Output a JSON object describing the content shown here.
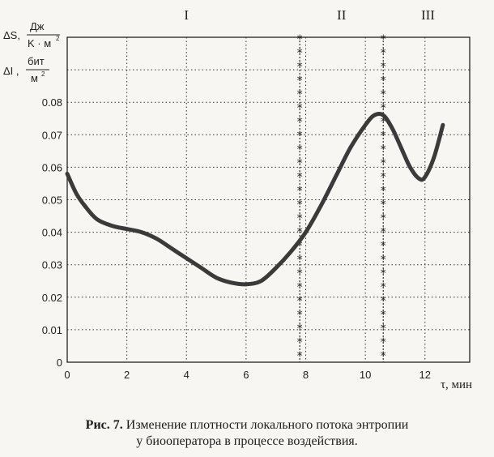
{
  "chart_data": {
    "type": "line",
    "y_label_line1": "ΔS,",
    "y_label_unit1_num": "Дж",
    "y_label_unit1_den": "K · м",
    "y_label_line2": "ΔI ,",
    "y_label_unit2_num": "бит",
    "y_label_unit2_den": "м",
    "y_label_sup": "2",
    "xlabel": "τ, мин",
    "xlim": [
      0,
      13.5
    ],
    "ylim": [
      0,
      0.1
    ],
    "x_ticks": [
      0,
      2,
      4,
      6,
      8,
      10,
      12
    ],
    "y_ticks": [
      0,
      0.01,
      0.02,
      0.03,
      0.04,
      0.05,
      0.06,
      0.07,
      0.08
    ],
    "y_tick_labels": [
      "0",
      "0.01",
      "0.02",
      "0.03",
      "0.04",
      "0.05",
      "0.06",
      "0.07",
      "0.08"
    ],
    "grid": true,
    "zones": [
      {
        "label": "I",
        "x": 4
      },
      {
        "label": "II",
        "x": 9.2
      },
      {
        "label": "III",
        "x": 12.1
      }
    ],
    "boundaries": [
      7.8,
      10.6
    ],
    "series": [
      {
        "x": [
          0,
          0.3,
          0.6,
          1,
          1.5,
          2,
          2.5,
          3,
          3.5,
          4,
          4.5,
          5,
          5.5,
          6,
          6.5,
          7,
          7.5,
          8,
          8.5,
          9,
          9.5,
          10,
          10.3,
          10.6,
          10.9,
          11.2,
          11.5,
          11.8,
          12,
          12.3,
          12.6
        ],
        "y": [
          0.058,
          0.052,
          0.048,
          0.044,
          0.042,
          0.041,
          0.04,
          0.038,
          0.035,
          0.032,
          0.029,
          0.026,
          0.0245,
          0.024,
          0.025,
          0.029,
          0.034,
          0.04,
          0.048,
          0.057,
          0.066,
          0.073,
          0.076,
          0.076,
          0.072,
          0.066,
          0.06,
          0.0565,
          0.057,
          0.063,
          0.073
        ]
      }
    ]
  },
  "caption": {
    "prefix": "Рис. 7.",
    "line1": " Изменение плотности локального потока энтропии",
    "line2": "у биооператора в процессе воздействия."
  }
}
